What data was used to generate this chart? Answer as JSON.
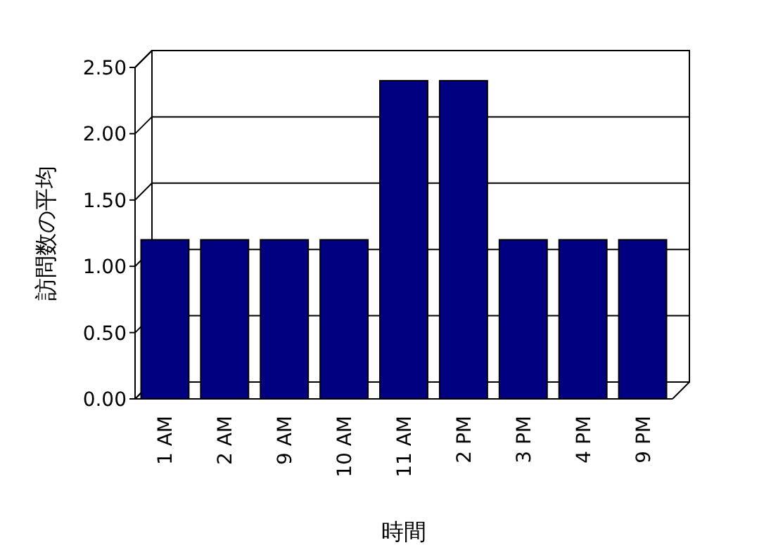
{
  "chart_data": {
    "type": "bar",
    "xlabel": "時間",
    "ylabel": "訪問数の平均",
    "categories": [
      "1 AM",
      "2 AM",
      "9 AM",
      "10 AM",
      "11 AM",
      "2 PM",
      "3 PM",
      "4 PM",
      "9 PM"
    ],
    "values": [
      1.2,
      1.2,
      1.2,
      1.2,
      2.4,
      2.4,
      1.2,
      1.2,
      1.2
    ],
    "color": "#000080",
    "ylim": [
      0,
      2.5
    ],
    "yticks": [
      {
        "value": 0,
        "label": "0.00"
      },
      {
        "value": 0.5,
        "label": "0.50"
      },
      {
        "value": 1,
        "label": "1.00"
      },
      {
        "value": 1.5,
        "label": "1.50"
      },
      {
        "value": 2,
        "label": "2.00"
      },
      {
        "value": 2.5,
        "label": "2.50"
      }
    ],
    "grid": "y"
  }
}
